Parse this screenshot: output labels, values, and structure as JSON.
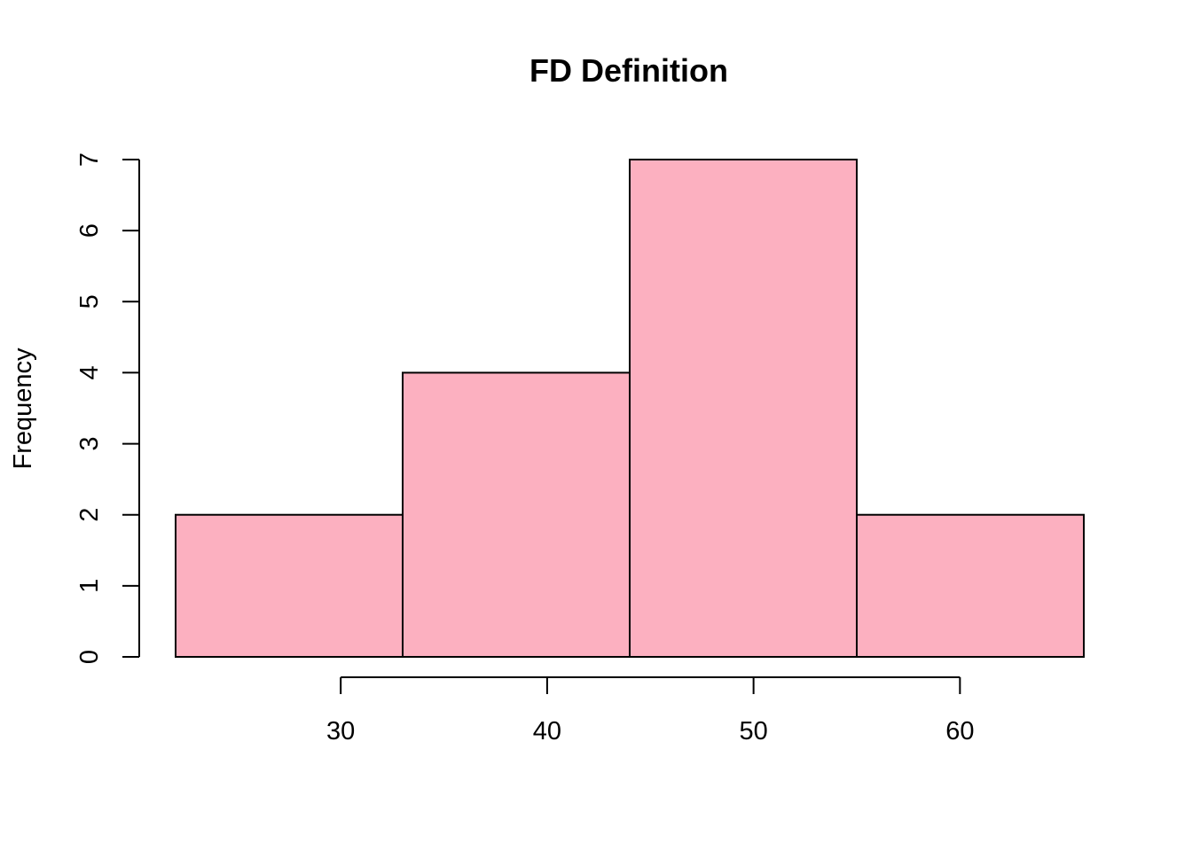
{
  "chart_data": {
    "type": "bar",
    "title": "FD Definition",
    "xlabel": "",
    "ylabel": "Frequency",
    "bins": [
      {
        "x0": 22,
        "x1": 33,
        "count": 2
      },
      {
        "x0": 33,
        "x1": 44,
        "count": 4
      },
      {
        "x0": 44,
        "x1": 55,
        "count": 7
      },
      {
        "x0": 55,
        "x1": 66,
        "count": 2
      }
    ],
    "x_ticks": [
      30,
      40,
      50,
      60
    ],
    "y_ticks": [
      0,
      1,
      2,
      3,
      4,
      5,
      6,
      7
    ],
    "ylim": [
      0,
      7
    ],
    "grid": false,
    "colors": {
      "bar_fill": "#FCB0C0",
      "bar_stroke": "#000000"
    }
  }
}
